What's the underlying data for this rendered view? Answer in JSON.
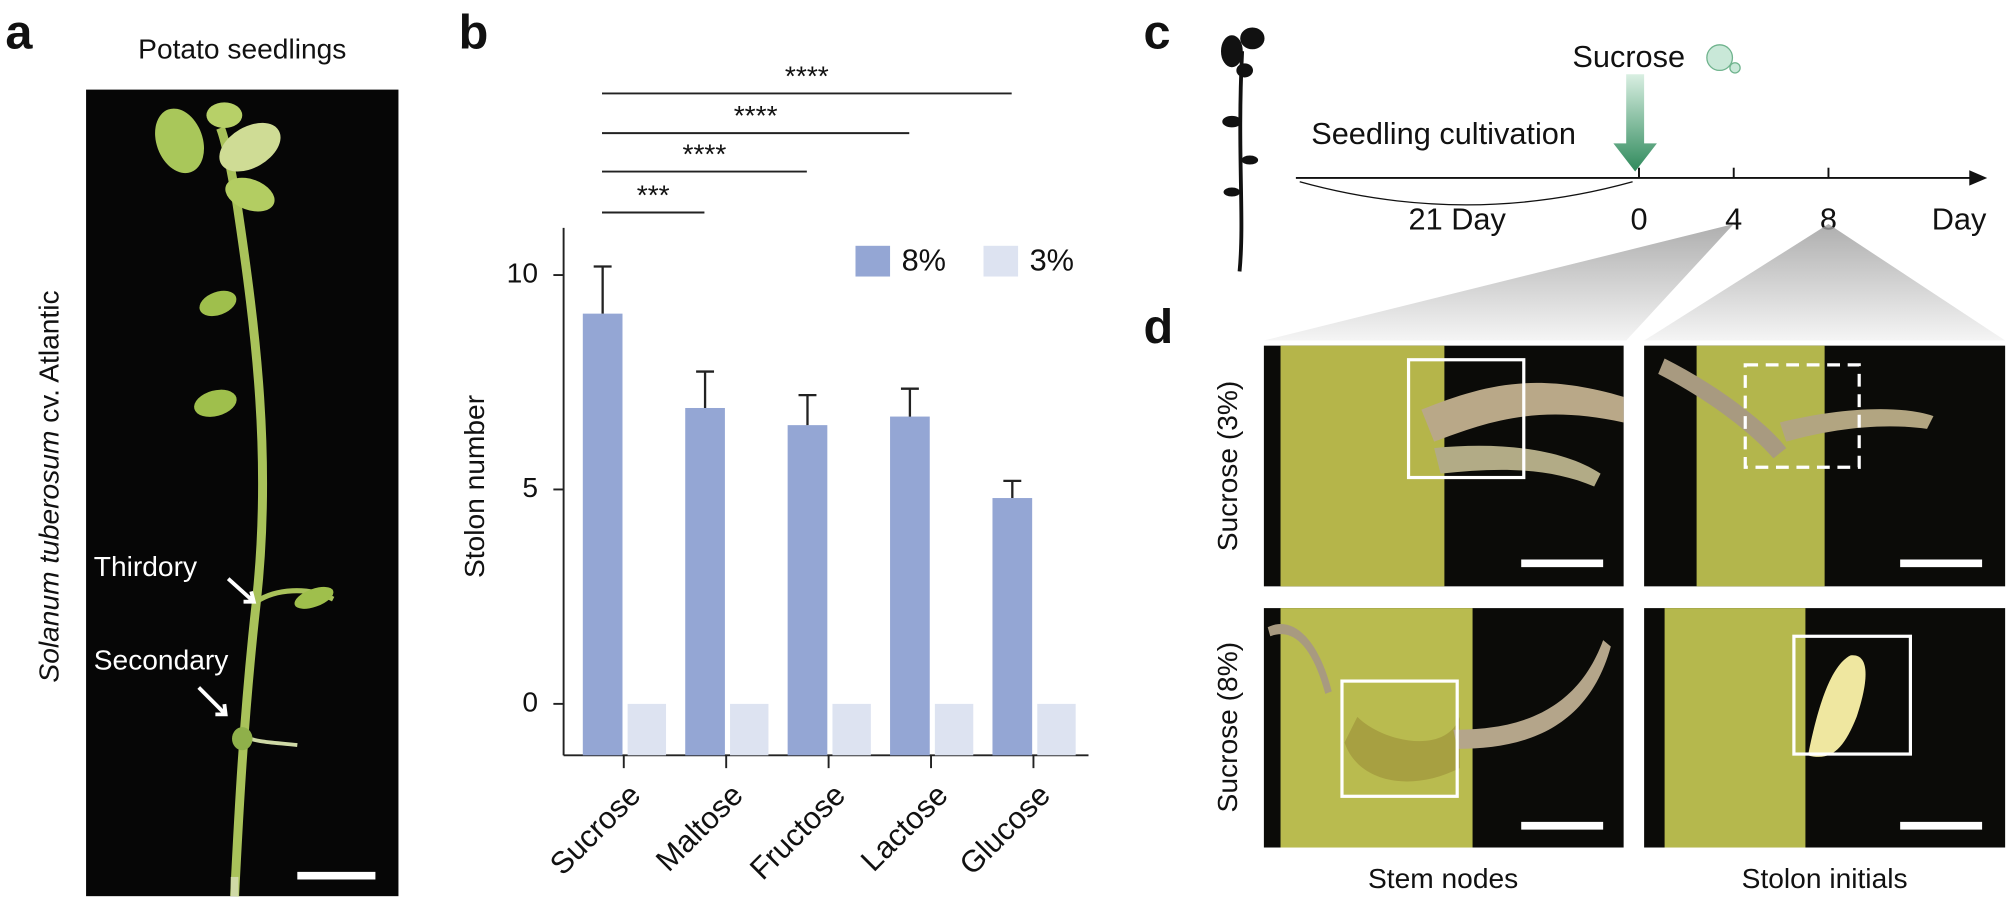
{
  "panels": {
    "a": {
      "label": "a",
      "title": "Potato seedlings",
      "species": "Solanum tuberosum",
      "cultivar": "cv. Atlantic",
      "annotations": [
        "Thirdory",
        "Secondary"
      ]
    },
    "c": {
      "label": "c",
      "treatment": "Sucrose",
      "phase": "Seedling cultivation",
      "duration": "21 Day",
      "ticks": [
        "0",
        "4",
        "8"
      ],
      "axis_unit": "Day"
    },
    "d": {
      "label": "d",
      "rows": [
        "Sucrose (3%)",
        "Sucrose (8%)"
      ],
      "columns": [
        "Stem nodes",
        "Stolon initials"
      ]
    }
  },
  "chart_data": {
    "type": "bar",
    "label": "b",
    "y_label": "Stolon number",
    "categories": [
      "Sucrose",
      "Maltose",
      "Fructose",
      "Lactose",
      "Glucose"
    ],
    "series": [
      {
        "name": "8%",
        "color": "#94a6d4",
        "values": [
          9.1,
          6.9,
          6.5,
          6.7,
          4.8
        ],
        "errors": [
          1.1,
          0.85,
          0.7,
          0.65,
          0.4
        ]
      },
      {
        "name": "3%",
        "color": "#dde3f1",
        "values": [
          0,
          0,
          0,
          0,
          0
        ]
      }
    ],
    "ylim": [
      -1.2,
      11.1
    ],
    "yticks": [
      0,
      5,
      10
    ],
    "significance": [
      {
        "from": "Sucrose",
        "to": "Maltose",
        "label": "***"
      },
      {
        "from": "Sucrose",
        "to": "Fructose",
        "label": "****"
      },
      {
        "from": "Sucrose",
        "to": "Lactose",
        "label": "****"
      },
      {
        "from": "Sucrose",
        "to": "Glucose",
        "label": "****"
      }
    ]
  }
}
